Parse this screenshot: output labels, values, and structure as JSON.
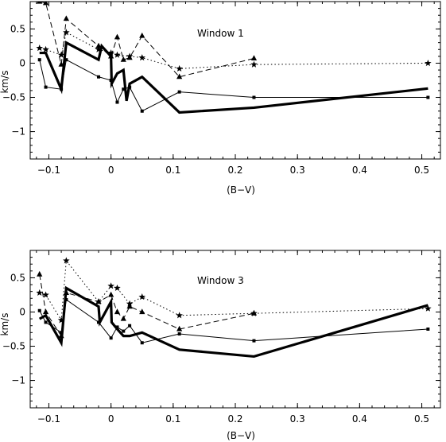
{
  "chart_data": [
    {
      "type": "line",
      "annotation": "Window 1",
      "xlabel": "(B−V)",
      "ylabel": "km/s",
      "xlim": [
        -0.13,
        0.53
      ],
      "ylim": [
        -1.4,
        0.9
      ],
      "xticks": [
        -0.1,
        0,
        0.1,
        0.2,
        0.3,
        0.4,
        0.5
      ],
      "xtick_labels": [
        "−0.1",
        "0",
        "0.1",
        "0.2",
        "0.3",
        "0.4",
        "0.5"
      ],
      "yticks": [
        0.5,
        0,
        -0.5,
        -1
      ],
      "ytick_labels": [
        "0.5",
        "0",
        "−0.5",
        "−1"
      ],
      "grid": false,
      "series": [
        {
          "style": "dotted",
          "marker": "star",
          "x": [
            -0.115,
            -0.105,
            -0.08,
            -0.072,
            -0.02,
            0,
            0.01,
            0.03,
            0.05,
            0.11,
            0.23,
            0.51
          ],
          "y": [
            0.22,
            0.2,
            0.12,
            0.45,
            0.2,
            0.15,
            0.12,
            0.1,
            0.08,
            -0.08,
            -0.02,
            0.0
          ]
        },
        {
          "style": "dashed",
          "marker": "triangle",
          "x": [
            -0.115,
            -0.105,
            -0.08,
            -0.072,
            -0.02,
            0,
            0.01,
            0.02,
            0.03,
            0.05,
            0.11,
            0.23
          ],
          "y": [
            0.9,
            0.88,
            -0.02,
            0.65,
            0.25,
            0.1,
            0.38,
            0.05,
            0.08,
            0.4,
            -0.2,
            0.07
          ]
        },
        {
          "style": "thin-solid",
          "marker": "square",
          "x": [
            -0.115,
            -0.105,
            -0.08,
            -0.072,
            -0.02,
            0,
            0.01,
            0.02,
            0.03,
            0.05,
            0.11,
            0.23,
            0.51
          ],
          "y": [
            0.05,
            -0.35,
            -0.38,
            0.05,
            -0.2,
            -0.25,
            -0.57,
            -0.38,
            -0.35,
            -0.7,
            -0.42,
            -0.5,
            -0.5
          ]
        },
        {
          "style": "thick-solid",
          "marker": "none",
          "x": [
            -0.115,
            -0.105,
            -0.08,
            -0.072,
            -0.02,
            -0.015,
            0,
            0.001,
            0.01,
            0.02,
            0.025,
            0.03,
            0.05,
            0.11,
            0.23,
            0.51
          ],
          "y": [
            0.15,
            0.15,
            -0.38,
            0.3,
            0.05,
            0.25,
            0.1,
            -0.3,
            -0.15,
            -0.1,
            -0.55,
            -0.3,
            -0.2,
            -0.72,
            -0.65,
            -0.37
          ]
        }
      ]
    },
    {
      "type": "line",
      "annotation": "Window 3",
      "xlabel": "(B−V)",
      "ylabel": "km/s",
      "xlim": [
        -0.13,
        0.53
      ],
      "ylim": [
        -1.4,
        0.9
      ],
      "xticks": [
        -0.1,
        0,
        0.1,
        0.2,
        0.3,
        0.4,
        0.5
      ],
      "xtick_labels": [
        "−0.1",
        "0",
        "0.1",
        "0.2",
        "0.3",
        "0.4",
        "0.5"
      ],
      "yticks": [
        0.5,
        0,
        -0.5,
        -1
      ],
      "ytick_labels": [
        "0.5",
        "0",
        "−0.5",
        "−1"
      ],
      "grid": false,
      "series": [
        {
          "style": "dotted",
          "marker": "star",
          "x": [
            -0.115,
            -0.105,
            -0.08,
            -0.072,
            -0.02,
            0,
            0.01,
            0.03,
            0.05,
            0.11,
            0.23,
            0.51
          ],
          "y": [
            0.28,
            0.25,
            -0.12,
            0.75,
            0.15,
            0.38,
            0.35,
            0.12,
            0.22,
            -0.05,
            -0.02,
            0.05
          ]
        },
        {
          "style": "dashed",
          "marker": "triangle",
          "x": [
            -0.115,
            -0.105,
            -0.08,
            -0.072,
            -0.02,
            0,
            0.01,
            0.02,
            0.03,
            0.05,
            0.11,
            0.23
          ],
          "y": [
            0.55,
            0.0,
            -0.35,
            0.28,
            0.15,
            0.25,
            0.0,
            -0.1,
            0.08,
            0.0,
            -0.25,
            -0.02
          ]
        },
        {
          "style": "thin-solid",
          "marker": "square",
          "x": [
            -0.115,
            -0.105,
            -0.08,
            -0.072,
            -0.02,
            0,
            0.01,
            0.02,
            0.03,
            0.05,
            0.11,
            0.23,
            0.51
          ],
          "y": [
            0.02,
            -0.15,
            -0.3,
            0.18,
            -0.15,
            -0.38,
            -0.22,
            -0.28,
            -0.2,
            -0.45,
            -0.32,
            -0.42,
            -0.25
          ]
        },
        {
          "style": "thick-solid",
          "marker": "none",
          "x": [
            -0.115,
            -0.105,
            -0.08,
            -0.072,
            -0.02,
            -0.018,
            0,
            0.001,
            0.01,
            0.02,
            0.03,
            0.05,
            0.11,
            0.23,
            0.51
          ],
          "y": [
            -0.1,
            -0.05,
            -0.45,
            0.35,
            0.08,
            -0.15,
            0.15,
            -0.15,
            -0.25,
            -0.35,
            -0.35,
            -0.3,
            -0.55,
            -0.65,
            0.1
          ]
        }
      ]
    }
  ]
}
